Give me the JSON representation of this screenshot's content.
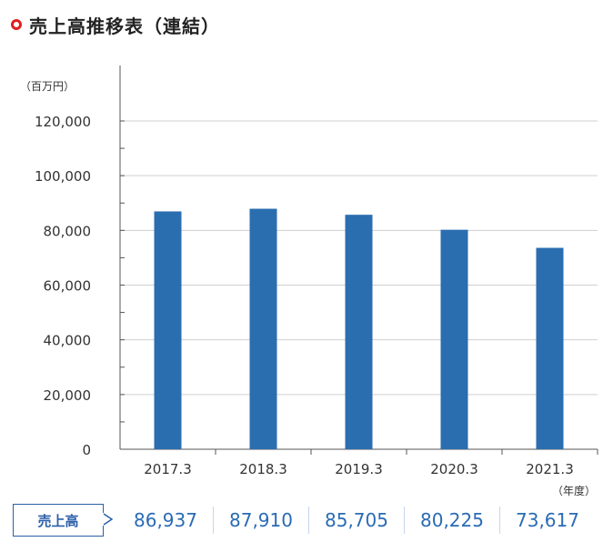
{
  "title": "売上高推移表（連結）",
  "chart_data": {
    "type": "bar",
    "categories": [
      "2017.3",
      "2018.3",
      "2019.3",
      "2020.3",
      "2021.3"
    ],
    "series": [
      {
        "name": "売上高",
        "values": [
          86937,
          87910,
          85705,
          80225,
          73617
        ]
      }
    ],
    "ylim": [
      0,
      120000
    ],
    "yticks": [
      0,
      20000,
      40000,
      60000,
      80000,
      100000,
      120000
    ],
    "ytick_labels": [
      "0",
      "20,000",
      "40,000",
      "60,000",
      "80,000",
      "100,000",
      "120,000"
    ],
    "y_unit": "（百万円）",
    "x_unit": "（年度）",
    "grid": true,
    "bar_color": "#2a6eb0"
  },
  "table": {
    "row_label": "売上高",
    "values": [
      "86,937",
      "87,910",
      "85,705",
      "80,225",
      "73,617"
    ]
  },
  "colors": {
    "accent": "#e02020",
    "bar": "#2a6eb0",
    "value_text": "#2a6bb5",
    "label_border": "#2a5fa8"
  }
}
